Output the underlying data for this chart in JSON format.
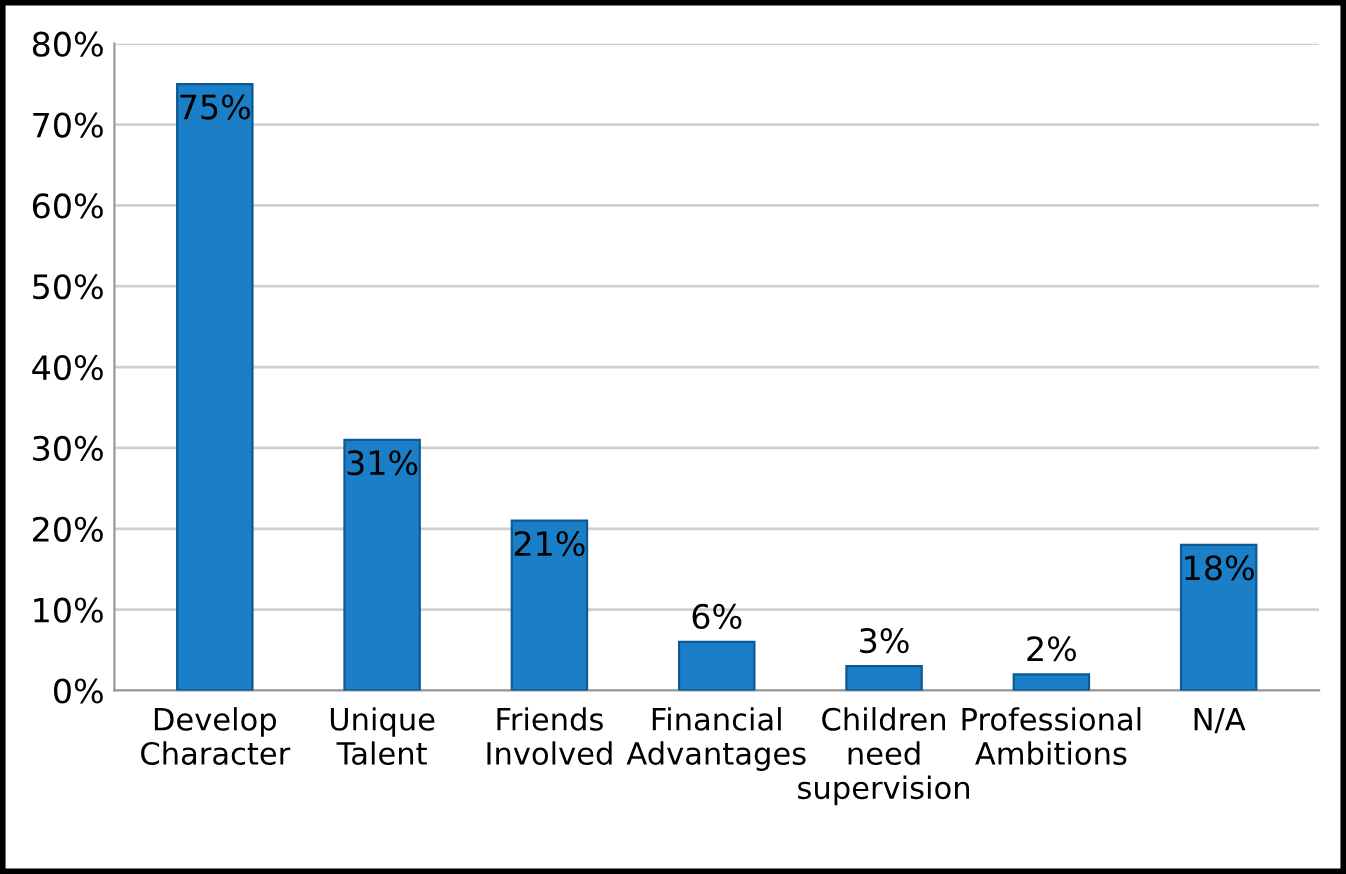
{
  "chart_data": {
    "type": "bar",
    "categories": [
      "Develop\nCharacter",
      "Unique\nTalent",
      "Friends\nInvolved",
      "Financial\nAdvantages",
      "Children\nneed\nsupervision",
      "Professional\nAmbitions",
      "N/A"
    ],
    "values": [
      75,
      31,
      21,
      6,
      3,
      2,
      18
    ],
    "value_labels": [
      "75%",
      "31%",
      "21%",
      "6%",
      "3%",
      "2%",
      "18%"
    ],
    "color": "#1a7fc6",
    "ylim": [
      0,
      80
    ],
    "yticks": [
      {
        "value": 0,
        "label": "0%"
      },
      {
        "value": 10,
        "label": "10%"
      },
      {
        "value": 20,
        "label": "20%"
      },
      {
        "value": 30,
        "label": "30%"
      },
      {
        "value": 40,
        "label": "40%"
      },
      {
        "value": 50,
        "label": "50%"
      },
      {
        "value": 60,
        "label": "60%"
      },
      {
        "value": 70,
        "label": "70%"
      },
      {
        "value": 80,
        "label": "80%"
      }
    ],
    "grid": "y"
  }
}
